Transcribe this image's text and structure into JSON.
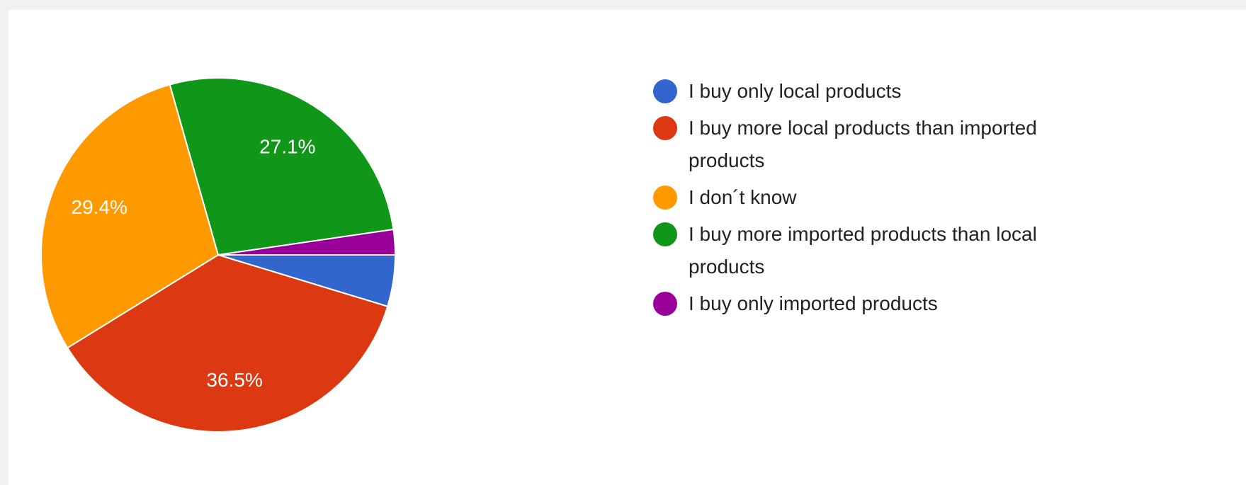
{
  "chart_data": {
    "type": "pie",
    "categories": [
      "I buy only local products",
      "I buy more local products than imported products",
      "I don´t know",
      "I buy more imported products than local products",
      "I buy only imported products"
    ],
    "values": [
      4.7,
      36.5,
      29.4,
      27.1,
      2.3
    ],
    "value_labels": [
      null,
      "36.5%",
      "29.4%",
      "27.1%",
      null
    ],
    "colors": [
      "#3366cc",
      "#dc3912",
      "#ff9900",
      "#109618",
      "#990099"
    ],
    "legend": "right"
  }
}
